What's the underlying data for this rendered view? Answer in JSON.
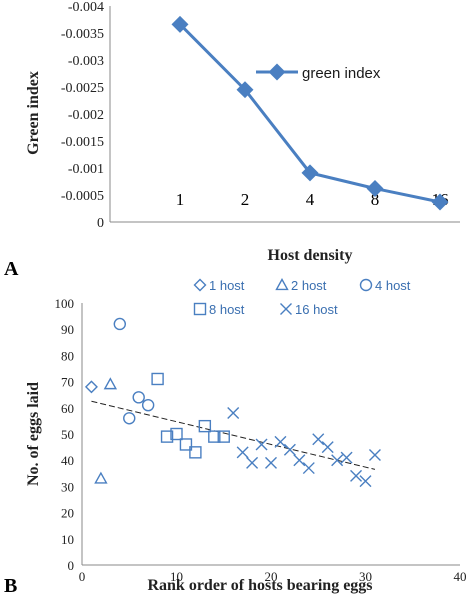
{
  "chart_data": [
    {
      "panel": "A",
      "type": "line",
      "xlabel": "Host density",
      "ylabel": "Green index",
      "categories": [
        "1",
        "2",
        "4",
        "8",
        "16"
      ],
      "series": [
        {
          "name": "green index",
          "values": [
            -0.00366,
            -0.00245,
            -0.00091,
            -0.00062,
            -0.00037
          ]
        }
      ],
      "ylim": [
        -0.004,
        0
      ],
      "y_reversed": true,
      "yticks": [
        "-0.004",
        "-0.0035",
        "-0.003",
        "-0.0025",
        "-0.002",
        "-0.0015",
        "-0.001",
        "-0.0005",
        "0"
      ],
      "legend_position": "right",
      "colors": {
        "series": "#4a7fc1"
      }
    },
    {
      "panel": "B",
      "type": "scatter",
      "xlabel": "Rank order of hosts bearing eggs",
      "ylabel": "No. of eggs laid",
      "xlim": [
        0,
        40
      ],
      "ylim": [
        0,
        100
      ],
      "xticks": [
        "0",
        "10",
        "20",
        "30",
        "40"
      ],
      "yticks": [
        "0",
        "10",
        "20",
        "30",
        "40",
        "50",
        "60",
        "70",
        "80",
        "90",
        "100"
      ],
      "series": [
        {
          "name": "1 host",
          "marker": "diamond",
          "points": [
            [
              1,
              68
            ]
          ]
        },
        {
          "name": "2 host",
          "marker": "triangle",
          "points": [
            [
              2,
              33
            ],
            [
              3,
              69
            ]
          ]
        },
        {
          "name": "4 host",
          "marker": "circle",
          "points": [
            [
              4,
              92
            ],
            [
              5,
              56
            ],
            [
              6,
              64
            ],
            [
              7,
              61
            ]
          ]
        },
        {
          "name": "8 host",
          "marker": "square",
          "points": [
            [
              8,
              71
            ],
            [
              9,
              49
            ],
            [
              10,
              50
            ],
            [
              11,
              46
            ],
            [
              12,
              43
            ],
            [
              13,
              53
            ],
            [
              14,
              49
            ],
            [
              15,
              49
            ]
          ]
        },
        {
          "name": "16 host",
          "marker": "x",
          "points": [
            [
              16,
              58
            ],
            [
              17,
              43
            ],
            [
              18,
              39
            ],
            [
              19,
              46
            ],
            [
              20,
              39
            ],
            [
              21,
              47
            ],
            [
              22,
              44
            ],
            [
              23,
              40
            ],
            [
              24,
              37
            ],
            [
              25,
              48
            ],
            [
              26,
              45
            ],
            [
              27,
              40
            ],
            [
              28,
              41
            ],
            [
              29,
              34
            ],
            [
              30,
              32
            ],
            [
              31,
              42
            ]
          ]
        }
      ],
      "trendline": {
        "style": "dashed",
        "x": [
          1,
          31
        ],
        "y": [
          62.5,
          36.5
        ]
      },
      "legend_position": "top",
      "colors": {
        "markers": "#4a7fc1",
        "trendline": "#222222"
      }
    }
  ]
}
